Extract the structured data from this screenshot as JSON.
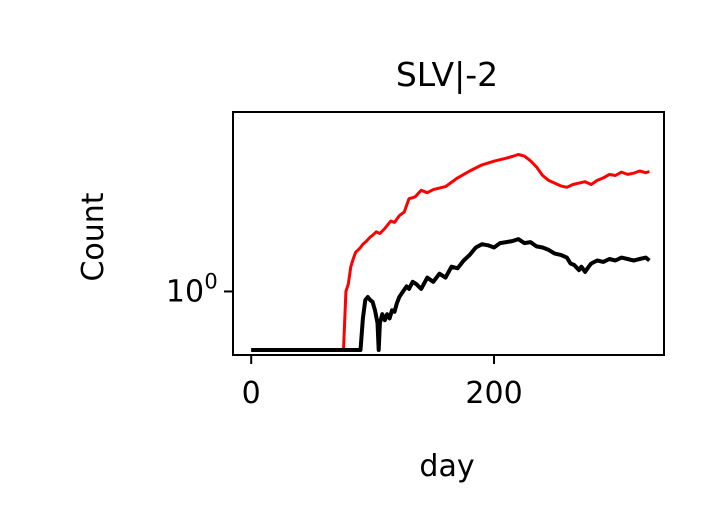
{
  "chart_data": {
    "type": "line",
    "title": "SLV|-2",
    "xlabel": "day",
    "ylabel": "Count",
    "x_ticks": [
      0,
      200
    ],
    "y_ticks": [
      {
        "value": 1,
        "label": "10",
        "exponent": "0"
      }
    ],
    "y_scale": "log",
    "xlim": [
      -15,
      340
    ],
    "ylim": [
      0.3,
      30
    ],
    "grid": false,
    "series": [
      {
        "color": "#ff0000",
        "x": [
          0,
          76,
          78,
          80,
          82,
          84,
          86,
          88,
          90,
          92,
          95,
          98,
          100,
          103,
          106,
          110,
          115,
          118,
          122,
          126,
          130,
          135,
          140,
          145,
          150,
          160,
          170,
          180,
          190,
          200,
          210,
          215,
          220,
          225,
          230,
          235,
          240,
          245,
          250,
          255,
          260,
          265,
          270,
          275,
          280,
          285,
          290,
          295,
          300,
          305,
          310,
          315,
          320,
          325,
          328
        ],
        "y": [
          0.33,
          0.33,
          1.0,
          1.15,
          1.6,
          1.85,
          2.1,
          2.2,
          2.3,
          2.45,
          2.6,
          2.8,
          2.9,
          3.1,
          3.0,
          3.3,
          3.8,
          3.7,
          4.2,
          4.5,
          5.8,
          6.0,
          6.8,
          6.5,
          6.9,
          7.3,
          8.6,
          9.8,
          11.0,
          11.8,
          12.5,
          12.9,
          13.4,
          13.0,
          11.9,
          10.6,
          9.0,
          8.2,
          7.8,
          7.4,
          7.2,
          7.6,
          7.8,
          8.0,
          7.6,
          8.2,
          8.6,
          9.2,
          9.0,
          9.6,
          9.2,
          9.4,
          9.8,
          9.5,
          9.7
        ]
      },
      {
        "color": "#000000",
        "x": [
          0,
          88,
          90,
          92,
          94,
          96,
          98,
          100,
          102,
          104,
          105,
          106,
          108,
          110,
          112,
          114,
          116,
          118,
          120,
          122,
          125,
          128,
          130,
          133,
          136,
          140,
          145,
          150,
          155,
          160,
          165,
          170,
          175,
          180,
          185,
          190,
          195,
          200,
          205,
          210,
          215,
          220,
          225,
          230,
          235,
          240,
          245,
          250,
          255,
          260,
          263,
          266,
          270,
          272,
          275,
          278,
          280,
          285,
          290,
          295,
          300,
          305,
          310,
          315,
          320,
          325,
          328
        ],
        "y": [
          0.33,
          0.33,
          0.33,
          0.6,
          0.85,
          0.9,
          0.85,
          0.82,
          0.7,
          0.55,
          0.33,
          0.55,
          0.65,
          0.58,
          0.65,
          0.6,
          0.7,
          0.68,
          0.8,
          0.9,
          1.0,
          1.1,
          1.05,
          1.2,
          1.15,
          1.05,
          1.3,
          1.2,
          1.4,
          1.3,
          1.6,
          1.55,
          1.8,
          2.0,
          2.3,
          2.45,
          2.4,
          2.3,
          2.5,
          2.55,
          2.6,
          2.7,
          2.5,
          2.55,
          2.35,
          2.3,
          2.2,
          2.05,
          2.0,
          1.9,
          1.7,
          1.65,
          1.5,
          1.6,
          1.45,
          1.6,
          1.7,
          1.8,
          1.75,
          1.85,
          1.8,
          1.9,
          1.85,
          1.8,
          1.85,
          1.9,
          1.8
        ]
      }
    ]
  }
}
